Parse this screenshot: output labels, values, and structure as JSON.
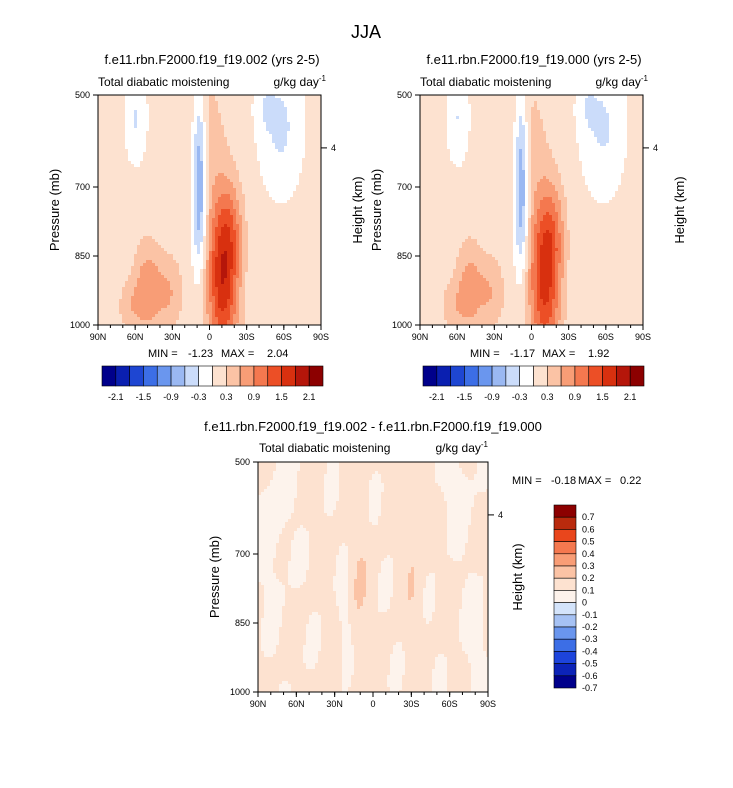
{
  "page_title": "JJA",
  "colors": {
    "abs_scale": [
      "#00008b",
      "#0a1fb0",
      "#1e46d2",
      "#3c6ee6",
      "#6a96ee",
      "#9ab8f2",
      "#cbdcfa",
      "#ffffff",
      "#fde2d0",
      "#fbc3a5",
      "#f89d76",
      "#f4784f",
      "#ec4f26",
      "#d8300f",
      "#b5160a",
      "#8c0000"
    ],
    "diff_scale": [
      "#00008b",
      "#0c23b8",
      "#1d44dc",
      "#3c6ee6",
      "#6a96ee",
      "#a6c2f4",
      "#d4e4fb",
      "#fdf3ec",
      "#fde2d0",
      "#fbc3a5",
      "#f89d76",
      "#f4784f",
      "#e9461c",
      "#b92a0d",
      "#8c0000"
    ]
  },
  "chart_data": [
    {
      "type": "heatmap",
      "title": "f.e11.rbn.F2000.f19_f19.002 (yrs 2-5)",
      "left_label": "Total diabatic moistening",
      "units_label": "g/kg day",
      "units_sup": "-1",
      "ylabel": "Pressure (mb)",
      "right_label": "Height (km)",
      "right_ticks": [
        "4"
      ],
      "x_ticks": [
        "90N",
        "60N",
        "30N",
        "0",
        "30S",
        "60S",
        "90S"
      ],
      "y_ticks": [
        "500",
        "700",
        "850",
        "1000"
      ],
      "min_label": "MIN =",
      "min_value": "-1.23",
      "max_label": "MAX =",
      "max_value": "2.04",
      "colorbar_labels": [
        "-2.1",
        "-1.5",
        "-0.9",
        "-0.3",
        "0.3",
        "0.9",
        "1.5",
        "2.1"
      ]
    },
    {
      "type": "heatmap",
      "title": "f.e11.rbn.F2000.f19_f19.000 (yrs 2-5)",
      "left_label": "Total diabatic moistening",
      "units_label": "g/kg day",
      "units_sup": "-1",
      "ylabel": "Pressure (mb)",
      "right_label": "Height (km)",
      "right_ticks": [
        "4"
      ],
      "x_ticks": [
        "90N",
        "60N",
        "30N",
        "0",
        "30S",
        "60S",
        "90S"
      ],
      "y_ticks": [
        "500",
        "700",
        "850",
        "1000"
      ],
      "min_label": "MIN =",
      "min_value": "-1.17",
      "max_label": "MAX =",
      "max_value": "1.92",
      "colorbar_labels": [
        "-2.1",
        "-1.5",
        "-0.9",
        "-0.3",
        "0.3",
        "0.9",
        "1.5",
        "2.1"
      ]
    },
    {
      "type": "heatmap",
      "title": "f.e11.rbn.F2000.f19_f19.002 - f.e11.rbn.F2000.f19_f19.000",
      "left_label": "Total diabatic moistening",
      "units_label": "g/kg day",
      "units_sup": "-1",
      "ylabel": "Pressure (mb)",
      "right_label": "Height (km)",
      "right_ticks": [
        "4"
      ],
      "x_ticks": [
        "90N",
        "60N",
        "30N",
        "0",
        "30S",
        "60S",
        "90S"
      ],
      "y_ticks": [
        "500",
        "700",
        "850",
        "1000"
      ],
      "min_label": "MIN =",
      "min_value": "-0.18",
      "max_label": "MAX =",
      "max_value": "0.22",
      "colorbar_labels": [
        "0.7",
        "0.6",
        "0.5",
        "0.4",
        "0.3",
        "0.2",
        "0.1",
        "0",
        "-0.1",
        "-0.2",
        "-0.3",
        "-0.4",
        "-0.5",
        "-0.6",
        "-0.7"
      ]
    }
  ]
}
